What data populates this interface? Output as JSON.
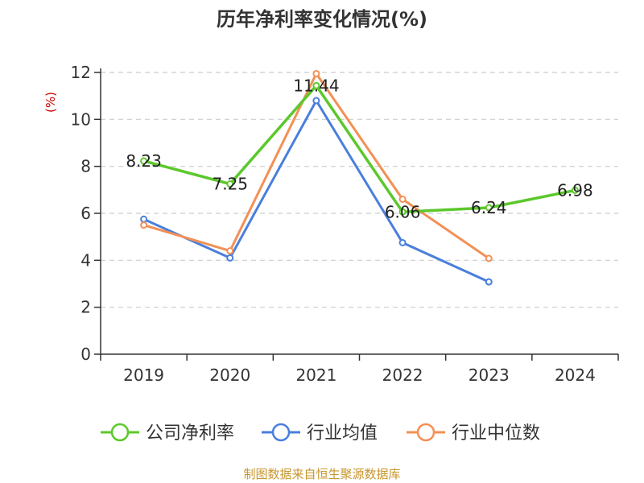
{
  "chart_data": {
    "type": "line",
    "title": "历年净利率变化情况(%)",
    "ylabel": "(%)",
    "categories": [
      "2019",
      "2020",
      "2021",
      "2022",
      "2023",
      "2024"
    ],
    "ylim": [
      0,
      12
    ],
    "yticks": [
      0,
      2,
      4,
      6,
      8,
      10,
      12
    ],
    "grid": true,
    "legend_position": "bottom",
    "series": [
      {
        "name": "公司净利率",
        "color": "#5cc82c",
        "values": [
          8.23,
          7.25,
          11.44,
          6.06,
          6.24,
          6.98
        ],
        "labels": [
          "8.23",
          "7.25",
          "11.44",
          "6.06",
          "6.24",
          "6.98"
        ]
      },
      {
        "name": "行业均值",
        "color": "#4a7fdc",
        "values": [
          5.75,
          4.1,
          10.8,
          4.75,
          3.08,
          null
        ]
      },
      {
        "name": "行业中位数",
        "color": "#f39056",
        "values": [
          5.5,
          4.4,
          11.95,
          6.6,
          4.08,
          null
        ]
      }
    ]
  },
  "source": "制图数据来自恒生聚源数据库",
  "colors": {
    "axis": "#333333",
    "grid": "#cccccc",
    "ylabel": "#cc0000",
    "source": "#c8962e"
  }
}
